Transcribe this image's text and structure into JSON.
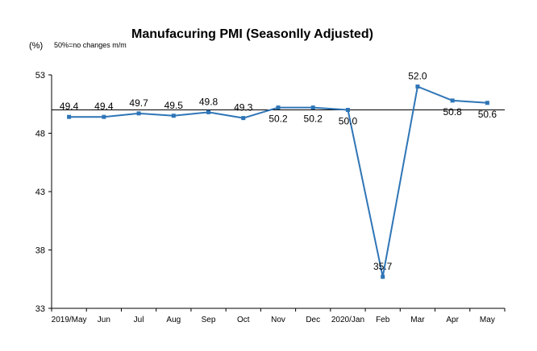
{
  "chart_data": {
    "type": "line",
    "title": "Manufacuring PMI (Seasonlly Adjusted)",
    "ylabel": "(%)",
    "note": "50%=no changes  m/m",
    "xlabel": "",
    "categories": [
      "2019/May",
      "Jun",
      "Jul",
      "Aug",
      "Sep",
      "Oct",
      "Nov",
      "Dec",
      "2020/Jan",
      "Feb",
      "Mar",
      "Apr",
      "May"
    ],
    "series": [
      {
        "values": [
          49.4,
          49.4,
          49.7,
          49.5,
          49.8,
          49.3,
          50.2,
          50.2,
          50.0,
          35.7,
          52.0,
          50.8,
          50.6
        ],
        "labels": [
          "49.4",
          "49.4",
          "49.7",
          "49.5",
          "49.8",
          "49.3",
          "50.2",
          "50.2",
          "50.0",
          "35.7",
          "52.0",
          "50.8",
          "50.6"
        ],
        "color": "#2e75b6"
      }
    ],
    "ylim": [
      33,
      53
    ],
    "yticks": [
      33,
      38,
      43,
      48,
      53
    ],
    "reference_line": 50,
    "grid": false,
    "legend": "none"
  }
}
